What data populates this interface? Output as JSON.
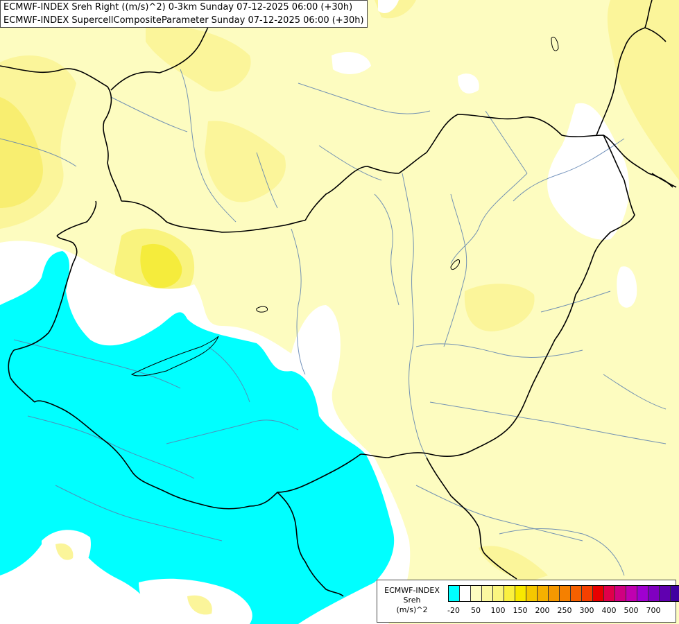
{
  "header": {
    "line1": "ECMWF-INDEX Sreh Right ((m/s)^2) 0-3km Sunday 07-12-2025 06:00 (+30h)",
    "line2": "ECMWF-INDEX SupercellCompositeParameter Sunday 07-12-2025 06:00 (+30h)"
  },
  "legend": {
    "title_line1": "ECMWF-INDEX",
    "title_line2": "Sreh",
    "title_line3": "(m/s)^2",
    "colors": [
      "#00ffff",
      "#ffffff",
      "#fdfcc0",
      "#fbf8a0",
      "#faf580",
      "#faf040",
      "#f8e800",
      "#f5c800",
      "#f5b000",
      "#f59800",
      "#f58000",
      "#f56000",
      "#f54000",
      "#e80000",
      "#e0004a",
      "#d00080",
      "#c000b0",
      "#a000d0",
      "#8000c0",
      "#6000b0",
      "#4000a0",
      "#100070"
    ],
    "ticks": [
      {
        "label": "-20",
        "index": 0.5
      },
      {
        "label": "50",
        "index": 2.5
      },
      {
        "label": "100",
        "index": 4.5
      },
      {
        "label": "150",
        "index": 6.5
      },
      {
        "label": "200",
        "index": 8.5
      },
      {
        "label": "250",
        "index": 10.5
      },
      {
        "label": "300",
        "index": 12.5
      },
      {
        "label": "400",
        "index": 14.5
      },
      {
        "label": "500",
        "index": 16.5
      },
      {
        "label": "700",
        "index": 18.5
      }
    ]
  }
}
